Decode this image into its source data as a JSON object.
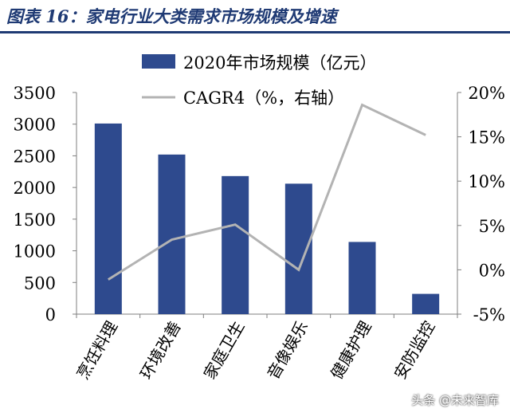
{
  "figure_title": "图表 16：家电行业大类需求市场规模及增速",
  "watermark": "头条 @未来智库",
  "colors": {
    "bar": "#2e4a8e",
    "line": "#b3b3b3",
    "title": "#1f3a74"
  },
  "chart_data": {
    "type": "bar",
    "categories": [
      "烹饪料理",
      "环境改善",
      "家庭卫生",
      "音像娱乐",
      "健康护理",
      "安防监控"
    ],
    "series": [
      {
        "name": "2020年市场规模（亿元）",
        "type": "bar",
        "axis": "left",
        "values": [
          3010,
          2520,
          2180,
          2060,
          1140,
          320
        ]
      },
      {
        "name": "CAGR4（%，右轴）",
        "type": "line",
        "axis": "right",
        "values": [
          -1.1,
          3.4,
          5.1,
          0.0,
          18.6,
          15.2
        ]
      }
    ],
    "left_axis": {
      "min": 0,
      "max": 3500,
      "step": 500,
      "ticks": [
        "0",
        "500",
        "1000",
        "1500",
        "2000",
        "2500",
        "3000",
        "3500"
      ]
    },
    "right_axis": {
      "min": -5,
      "max": 20,
      "step": 5,
      "ticks": [
        "-5%",
        "0%",
        "5%",
        "10%",
        "15%",
        "20%"
      ]
    },
    "legend_position": "top-center",
    "grid": false
  }
}
